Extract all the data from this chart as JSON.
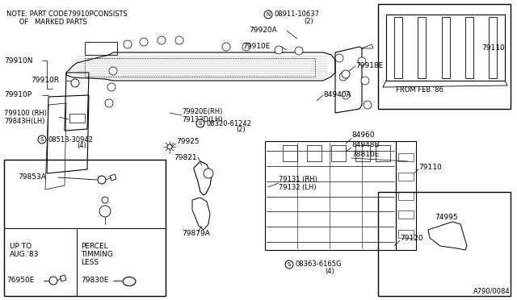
{
  "background_color": "#ffffff",
  "diagram_number": "A790/0084",
  "note_line1": "NOTE: PART CODE79910PCONSISTS",
  "note_line2": "      OF   MARKED PARTS",
  "inset_tr_label": "FROM FEB.'86",
  "part_79110_label": "79110",
  "fig_dpi": 100,
  "fig_w": 6.4,
  "fig_h": 3.72
}
